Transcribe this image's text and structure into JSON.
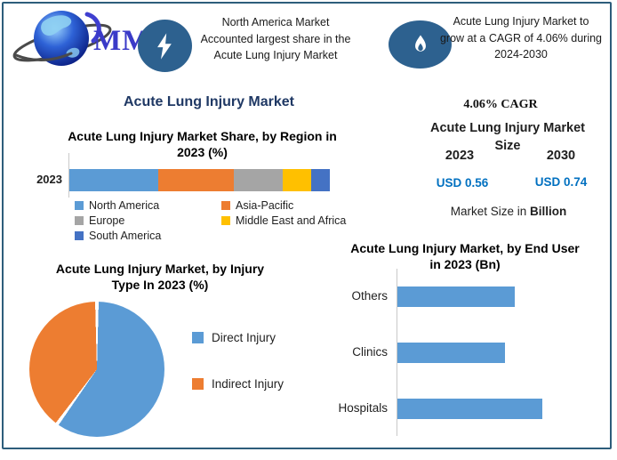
{
  "brand": {
    "logo_text": "MMR"
  },
  "header": {
    "highlight_left": {
      "icon": "lightning-icon",
      "line1": "North America Market",
      "line2": "Accounted largest share in the",
      "line3": "Acute Lung Injury Market"
    },
    "highlight_right": {
      "icon": "flame-icon",
      "line1": "Acute Lung Injury Market to",
      "line2": "grow at a CAGR of 4.06% during",
      "line3": "2024-2030"
    }
  },
  "main_title": "Acute Lung Injury Market",
  "region_section": {
    "title_line1": "Acute Lung Injury Market Share, by Region in",
    "title_line2": "2023 (%)",
    "year_label": "2023"
  },
  "cagr_panel": {
    "cagr_label": "4.06% CAGR",
    "heading_line1": "Acute Lung Injury Market",
    "heading_line2": "Size",
    "year_start": "2023",
    "year_end": "2030",
    "value_start": "USD 0.56",
    "value_end": "USD 0.74",
    "caption_regular": "Market Size in ",
    "caption_bold": "Billion"
  },
  "pie_section": {
    "title_line1": "Acute Lung Injury Market, by Injury",
    "title_line2": "Type In 2023 (%)"
  },
  "end_user_section": {
    "title_line1": "Acute Lung Injury Market, by End User",
    "title_line2": "in 2023 (Bn)"
  },
  "colors": {
    "accent_navy": "#1F3864",
    "badge_blue": "#2d618f",
    "frame_blue": "#2d5d7b",
    "usd_blue": "#0070C0"
  },
  "chart_data": [
    {
      "id": "region_share",
      "type": "bar",
      "variant": "stacked-horizontal",
      "title": "Acute Lung Injury Market Share, by Region in 2023 (%)",
      "categories": [
        "2023"
      ],
      "series": [
        {
          "name": "North America",
          "values": [
            34
          ],
          "color": "#5B9BD5"
        },
        {
          "name": "Asia-Pacific",
          "values": [
            29
          ],
          "color": "#ED7D31"
        },
        {
          "name": "Europe",
          "values": [
            19
          ],
          "color": "#A5A5A5"
        },
        {
          "name": "Middle East and Africa",
          "values": [
            11
          ],
          "color": "#FFC000"
        },
        {
          "name": "South America",
          "values": [
            7
          ],
          "color": "#4472C4"
        }
      ],
      "legend_position": "bottom",
      "note": "percentages estimated from segment widths; no data labels shown"
    },
    {
      "id": "injury_type",
      "type": "pie",
      "title": "Acute Lung Injury Market, by Injury Type In 2023 (%)",
      "slices": [
        {
          "name": "Direct Injury",
          "value": 60,
          "color": "#5B9BD5"
        },
        {
          "name": "Indirect Injury",
          "value": 40,
          "color": "#ED7D31"
        }
      ],
      "legend_position": "right",
      "note": "percentages estimated from slice angles; no data labels shown"
    },
    {
      "id": "end_user",
      "type": "bar",
      "variant": "horizontal",
      "title": "Acute Lung Injury Market, by End User in 2023 (Bn)",
      "categories": [
        "Others",
        "Clinics",
        "Hospitals"
      ],
      "values": [
        0.81,
        0.74,
        1.0
      ],
      "bar_color": "#5B9BD5",
      "note": "axis unlabeled; values are relative to longest bar (Hospitals = 1.0)"
    }
  ]
}
